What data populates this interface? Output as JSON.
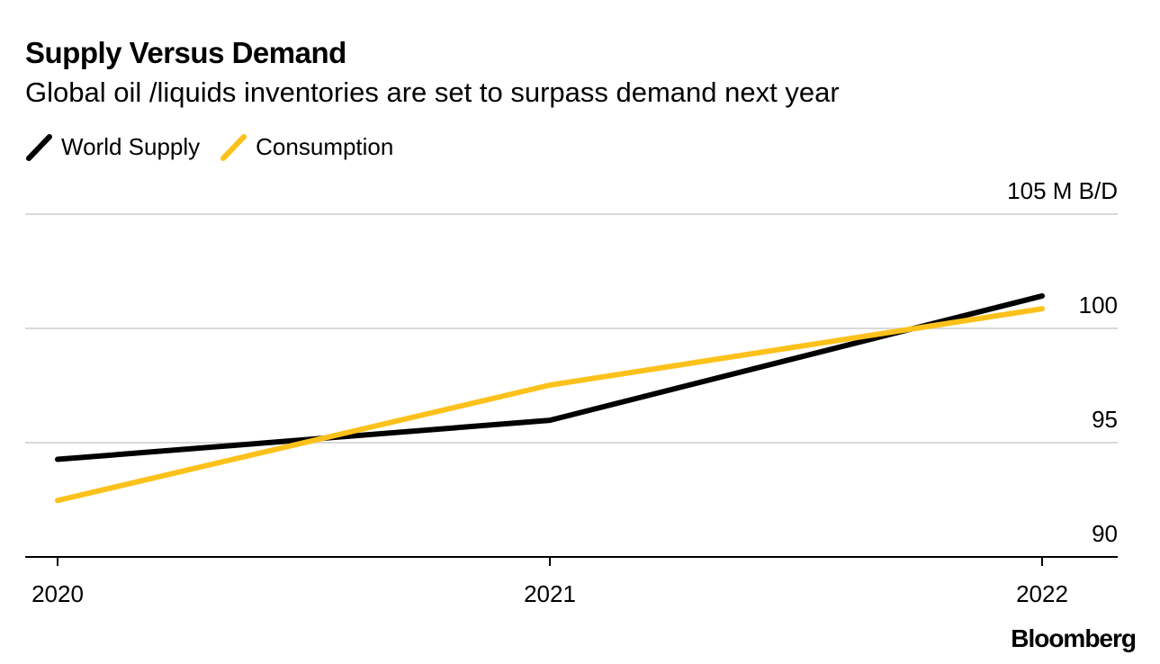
{
  "header": {
    "title": "Supply Versus Demand",
    "subtitle": "Global oil /liquids inventories are set to surpass demand next year"
  },
  "legend": [
    {
      "label": "World Supply",
      "color": "#000000"
    },
    {
      "label": "Consumption",
      "color": "#fcc11b"
    }
  ],
  "brand": "Bloomberg",
  "chart_data": {
    "type": "line",
    "title": "Supply Versus Demand",
    "subtitle": "Global oil /liquids inventories are set to surpass demand next year",
    "xlabel": "",
    "ylabel": "M B/D",
    "x": [
      2020,
      2021,
      2022
    ],
    "categories": [
      "2020",
      "2021",
      "2022"
    ],
    "ylim": [
      90,
      105
    ],
    "yticks": [
      90,
      95,
      100,
      105
    ],
    "ytick_labels": [
      "90",
      "95",
      "100",
      "105 M B/D"
    ],
    "grid": true,
    "legend_position": "top-left",
    "series": [
      {
        "name": "World Supply",
        "color": "#000000",
        "values": [
          94.27,
          95.98,
          101.42
        ]
      },
      {
        "name": "Consumption",
        "color": "#fcc11b",
        "values": [
          92.47,
          97.52,
          100.86
        ]
      }
    ]
  }
}
